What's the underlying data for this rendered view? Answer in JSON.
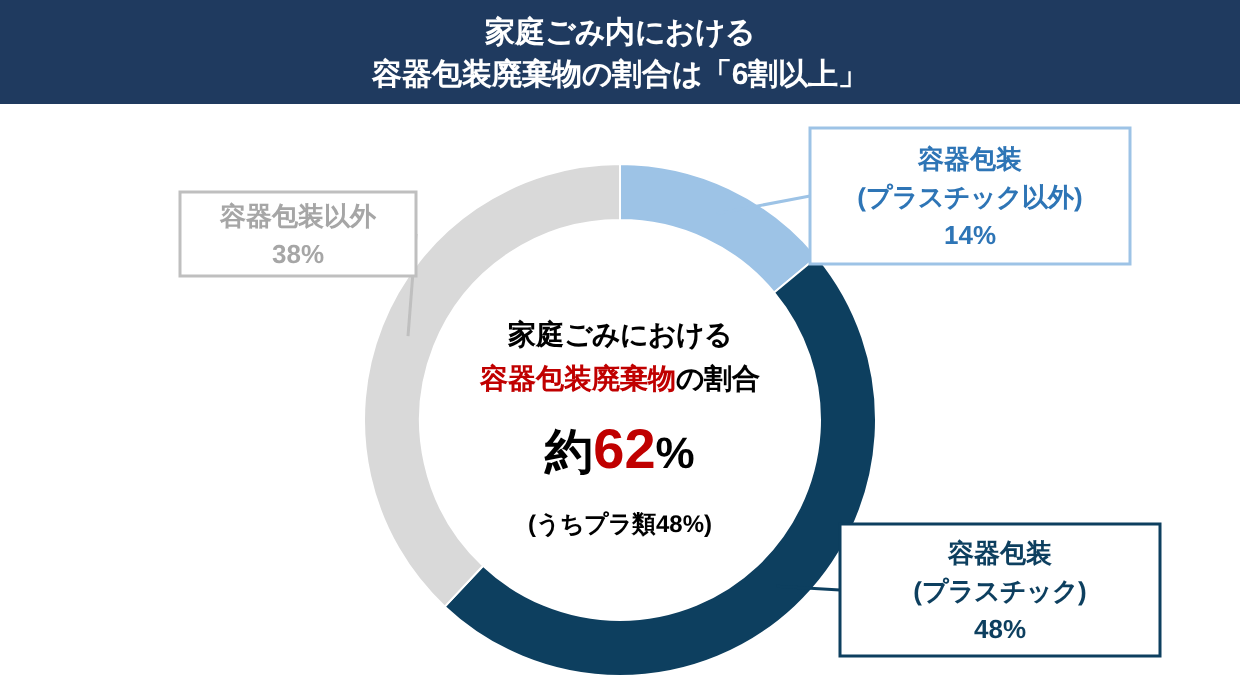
{
  "chart_data": {
    "type": "donut",
    "title": "家庭ごみ内における",
    "subtitle": "容器包装廃棄物の割合は「6割以上」",
    "categories": [
      "容器包装\n(プラスチック以外)",
      "容器包装\n(プラスチック)",
      "容器包装以外"
    ],
    "values": [
      14,
      48,
      38
    ],
    "colors": [
      "#9dc3e6",
      "#0d3f5f",
      "#d9d9d9"
    ],
    "value_labels": [
      "14%",
      "48%",
      "38%"
    ],
    "annotations": [
      "家庭ごみにおける",
      "容器包装廃棄物",
      "の割合",
      "約",
      "62",
      "%",
      "(うちプラ類48%)"
    ]
  }
}
